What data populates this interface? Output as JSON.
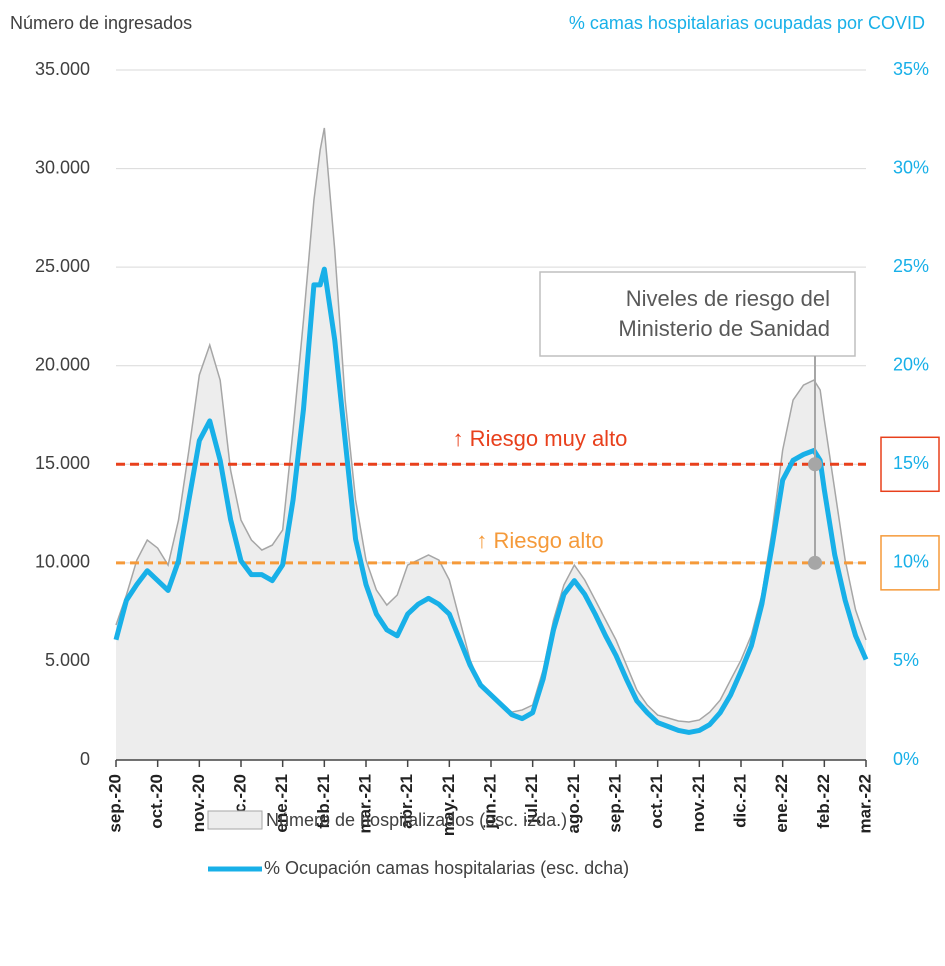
{
  "chart_data": {
    "type": "combo",
    "y_axis_title": "Número de ingresados",
    "y2_axis_title": "% camas hospitalarias ocupadas por COVID",
    "xlim": [
      0,
      18
    ],
    "xticks": [
      {
        "value": 0,
        "label": "sep.-20"
      },
      {
        "value": 1,
        "label": "oct.-20"
      },
      {
        "value": 2,
        "label": "nov.-20"
      },
      {
        "value": 3,
        "label": "dic.-20"
      },
      {
        "value": 4,
        "label": "ene.-21"
      },
      {
        "value": 5,
        "label": "feb.-21"
      },
      {
        "value": 6,
        "label": "mar.-21"
      },
      {
        "value": 7,
        "label": "abr.-21"
      },
      {
        "value": 8,
        "label": "may.-21"
      },
      {
        "value": 9,
        "label": "jun.-21"
      },
      {
        "value": 10,
        "label": "jul.-21"
      },
      {
        "value": 11,
        "label": "ago.-21"
      },
      {
        "value": 12,
        "label": "sep.-21"
      },
      {
        "value": 13,
        "label": "oct.-21"
      },
      {
        "value": 14,
        "label": "nov.-21"
      },
      {
        "value": 15,
        "label": "dic.-21"
      },
      {
        "value": 16,
        "label": "ene.-22"
      },
      {
        "value": 17,
        "label": "feb.-22"
      },
      {
        "value": 18,
        "label": "mar.-22"
      }
    ],
    "ylim": [
      0,
      35000
    ],
    "yticks": [
      0,
      {
        "value": 5000,
        "label": "5.000"
      },
      {
        "value": 10000,
        "label": "10.000"
      },
      {
        "value": 15000,
        "label": "15.000"
      },
      {
        "value": 20000,
        "label": "20.000"
      },
      {
        "value": 25000,
        "label": "25.000"
      },
      {
        "value": 30000,
        "label": "30.000"
      },
      {
        "value": 35000,
        "label": "35.000"
      }
    ],
    "y2lim": [
      0,
      35
    ],
    "y2ticks": [
      {
        "value": 0,
        "label": "0%"
      },
      {
        "value": 5,
        "label": "5%"
      },
      {
        "value": 10,
        "label": "10%"
      },
      {
        "value": 15,
        "label": "15%"
      },
      {
        "value": 20,
        "label": "20%"
      },
      {
        "value": 25,
        "label": "25%"
      },
      {
        "value": 30,
        "label": "30%"
      },
      {
        "value": 35,
        "label": "35%"
      }
    ],
    "grid": true,
    "x": [
      0,
      0.25,
      0.5,
      0.75,
      1,
      1.25,
      1.5,
      1.75,
      2,
      2.25,
      2.5,
      2.75,
      3,
      3.25,
      3.5,
      3.75,
      4,
      4.25,
      4.5,
      4.75,
      4.9,
      5,
      5.25,
      5.5,
      5.75,
      6,
      6.25,
      6.5,
      6.75,
      7,
      7.25,
      7.5,
      7.75,
      8,
      8.25,
      8.5,
      8.75,
      9,
      9.25,
      9.5,
      9.75,
      10,
      10.25,
      10.5,
      10.75,
      11,
      11.25,
      11.5,
      11.75,
      12,
      12.25,
      12.5,
      12.75,
      13,
      13.25,
      13.5,
      13.75,
      14,
      14.25,
      14.5,
      14.75,
      15,
      15.25,
      15.5,
      15.75,
      16,
      16.25,
      16.5,
      16.75,
      16.9,
      17,
      17.25,
      17.5,
      17.75,
      18
    ],
    "series": [
      {
        "name": "Número de hospitalizados (esc. izda.)",
        "type": "area",
        "color": "#ededed",
        "line_color": "#a6a6a6",
        "values": [
          6850,
          8370,
          10140,
          11160,
          10750,
          9890,
          12170,
          15720,
          19530,
          21050,
          19270,
          14700,
          12170,
          11160,
          10650,
          10900,
          11670,
          16740,
          22320,
          28400,
          30940,
          32060,
          25870,
          18260,
          13190,
          10140,
          8620,
          7860,
          8370,
          9890,
          10140,
          10400,
          10140,
          9130,
          7100,
          5070,
          3800,
          3300,
          2790,
          2430,
          2540,
          2790,
          4560,
          7100,
          8880,
          9890,
          9130,
          8120,
          7100,
          6090,
          4820,
          3550,
          2790,
          2280,
          2130,
          1980,
          1930,
          2030,
          2430,
          3040,
          4060,
          5070,
          6340,
          8370,
          11670,
          15720,
          18260,
          19020,
          19270,
          18770,
          17250,
          13700,
          10140,
          7610,
          6090
        ]
      },
      {
        "name": "% Ocupación camas hospitalarias (esc. dcha)",
        "type": "line",
        "axis": "y2",
        "color": "#18b0e8",
        "values": [
          6.1,
          8.1,
          8.9,
          9.6,
          9.1,
          8.6,
          10.1,
          13.2,
          16.2,
          17.2,
          15.2,
          12.2,
          10.1,
          9.4,
          9.4,
          9.1,
          9.9,
          13.2,
          17.8,
          24.1,
          24.1,
          24.9,
          21.3,
          16.2,
          11.2,
          8.9,
          7.4,
          6.6,
          6.3,
          7.4,
          7.9,
          8.2,
          7.9,
          7.4,
          6.1,
          4.8,
          3.8,
          3.3,
          2.8,
          2.3,
          2.1,
          2.4,
          4.1,
          6.6,
          8.4,
          9.1,
          8.4,
          7.4,
          6.3,
          5.3,
          4.1,
          3.0,
          2.4,
          1.9,
          1.7,
          1.5,
          1.4,
          1.5,
          1.8,
          2.4,
          3.3,
          4.5,
          5.8,
          7.9,
          10.9,
          14.2,
          15.2,
          15.5,
          15.7,
          15.2,
          13.7,
          10.4,
          8.1,
          6.3,
          5.1
        ]
      }
    ],
    "thresholds": [
      {
        "value": 15,
        "label": "↑ Riesgo muy alto",
        "color": "#e8401c"
      },
      {
        "value": 10,
        "label": "↑ Riesgo alto",
        "color": "#f59a3a"
      }
    ],
    "annotation": [
      "Niveles de riesgo del",
      "Ministerio de Sanidad"
    ]
  }
}
